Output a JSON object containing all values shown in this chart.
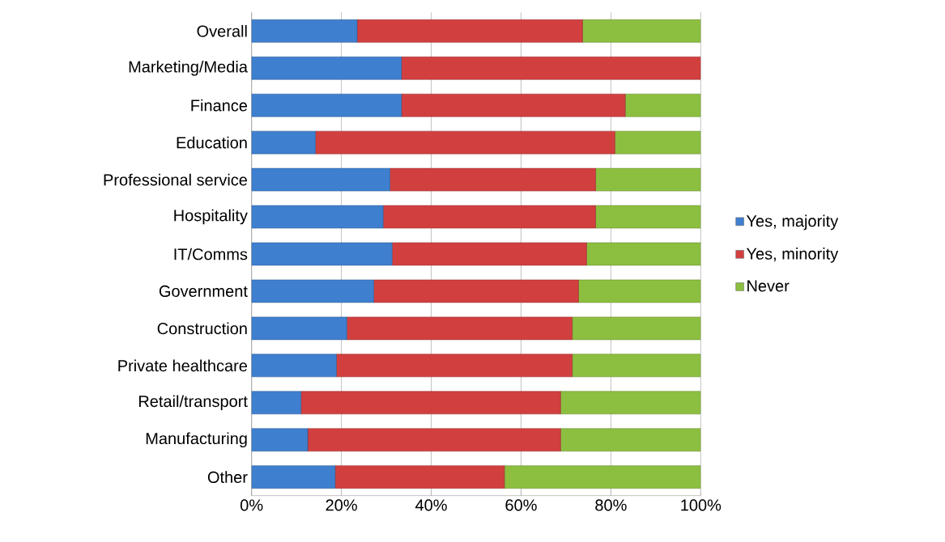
{
  "chart_data": {
    "type": "bar",
    "orientation": "horizontal",
    "stacked": true,
    "categories": [
      "Overall",
      "Marketing/Media",
      "Finance",
      "Education",
      "Professional service",
      "Hospitality",
      "IT/Comms",
      "Government",
      "Construction",
      "Private healthcare",
      "Retail/transport",
      "Manufacturing",
      "Other"
    ],
    "series": [
      {
        "name": "Yes, majority",
        "color": "#3f7fcf",
        "values": [
          23.5,
          33.4,
          33.4,
          14.2,
          30.8,
          29.3,
          31.3,
          27.2,
          21.2,
          18.9,
          11.0,
          12.5,
          18.6
        ]
      },
      {
        "name": "Yes, minority",
        "color": "#d23f3f",
        "values": [
          50.2,
          66.6,
          49.8,
          66.7,
          45.8,
          47.3,
          43.3,
          45.6,
          50.2,
          52.5,
          57.8,
          56.3,
          37.7
        ]
      },
      {
        "name": "Never",
        "color": "#8cbf3f",
        "values": [
          26.3,
          0,
          16.8,
          19.1,
          23.4,
          23.4,
          25.4,
          27.2,
          28.6,
          28.6,
          31.2,
          31.2,
          43.7
        ]
      }
    ],
    "xlim": [
      0,
      100
    ],
    "xticks": [
      {
        "value": 0,
        "label": "0%"
      },
      {
        "value": 20,
        "label": "20%"
      },
      {
        "value": 40,
        "label": "40%"
      },
      {
        "value": 60,
        "label": "60%"
      },
      {
        "value": 80,
        "label": "80%"
      },
      {
        "value": 100,
        "label": "100%"
      }
    ],
    "grid": "x",
    "legend": "right"
  }
}
